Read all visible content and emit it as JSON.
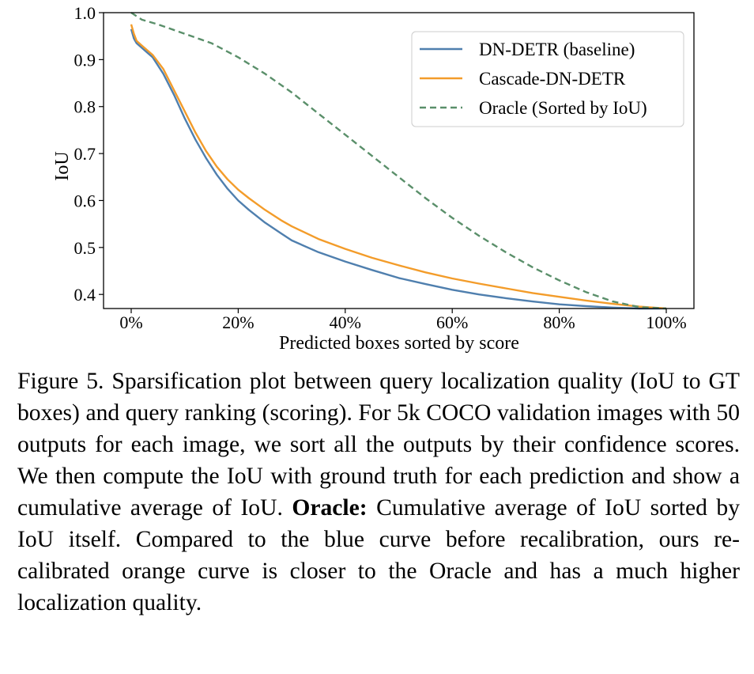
{
  "chart_data": {
    "type": "line",
    "xlabel": "Predicted boxes sorted by score",
    "ylabel": "IoU",
    "xlim": [
      0,
      100
    ],
    "ylim": [
      0.37,
      1.0
    ],
    "x_ticks": [
      "0%",
      "20%",
      "40%",
      "60%",
      "80%",
      "100%"
    ],
    "y_ticks": [
      "0.4",
      "0.5",
      "0.6",
      "0.7",
      "0.8",
      "0.9",
      "1.0"
    ],
    "grid": false,
    "legend_position": "top-right",
    "series": [
      {
        "name": "DN-DETR (baseline)",
        "color": "#4f7fae",
        "style": "solid",
        "x": [
          0,
          0.5,
          1,
          2,
          3,
          4,
          6,
          8,
          10,
          12,
          14,
          16,
          18,
          20,
          22,
          25,
          28,
          30,
          35,
          40,
          45,
          50,
          55,
          60,
          65,
          70,
          75,
          80,
          85,
          90,
          95,
          100
        ],
        "y": [
          0.965,
          0.945,
          0.935,
          0.925,
          0.915,
          0.905,
          0.87,
          0.825,
          0.775,
          0.73,
          0.69,
          0.655,
          0.625,
          0.6,
          0.58,
          0.553,
          0.53,
          0.515,
          0.49,
          0.47,
          0.452,
          0.435,
          0.422,
          0.41,
          0.4,
          0.392,
          0.385,
          0.379,
          0.375,
          0.372,
          0.37,
          0.37
        ]
      },
      {
        "name": "Cascade-DN-DETR",
        "color": "#f39c2a",
        "style": "solid",
        "x": [
          0,
          0.5,
          1,
          2,
          3,
          4,
          6,
          8,
          10,
          12,
          14,
          16,
          18,
          20,
          22,
          25,
          28,
          30,
          35,
          40,
          45,
          50,
          55,
          60,
          65,
          70,
          75,
          80,
          85,
          90,
          95,
          100
        ],
        "y": [
          0.975,
          0.955,
          0.94,
          0.93,
          0.92,
          0.91,
          0.88,
          0.835,
          0.79,
          0.745,
          0.705,
          0.672,
          0.645,
          0.623,
          0.605,
          0.58,
          0.558,
          0.545,
          0.518,
          0.497,
          0.478,
          0.462,
          0.447,
          0.434,
          0.423,
          0.413,
          0.403,
          0.395,
          0.387,
          0.38,
          0.374,
          0.37
        ]
      },
      {
        "name": "Oracle (Sorted by IoU)",
        "color": "#5a8f6a",
        "style": "dashed",
        "x": [
          0,
          2,
          5,
          10,
          15,
          20,
          25,
          30,
          35,
          40,
          45,
          50,
          55,
          60,
          65,
          70,
          75,
          80,
          85,
          90,
          95,
          100
        ],
        "y": [
          1.0,
          0.985,
          0.975,
          0.955,
          0.935,
          0.905,
          0.87,
          0.83,
          0.785,
          0.74,
          0.695,
          0.65,
          0.605,
          0.563,
          0.525,
          0.49,
          0.458,
          0.43,
          0.405,
          0.385,
          0.373,
          0.37
        ]
      }
    ]
  },
  "caption": {
    "label": "Figure 5.",
    "part1": "Sparsification plot between query localization quality (IoU to GT boxes) and query ranking (scoring).  For 5k COCO validation images with 50 outputs for each image, we sort all the outputs by their confidence scores. We then compute the IoU with ground truth for each prediction and show a cumulative average of IoU.",
    "bold_term": "Oracle:",
    "part2": "Cumulative average of IoU sorted by IoU itself. Compared to the blue curve before recalibration, ours re-calibrated orange curve is closer to the Oracle and has a much higher localization quality."
  }
}
